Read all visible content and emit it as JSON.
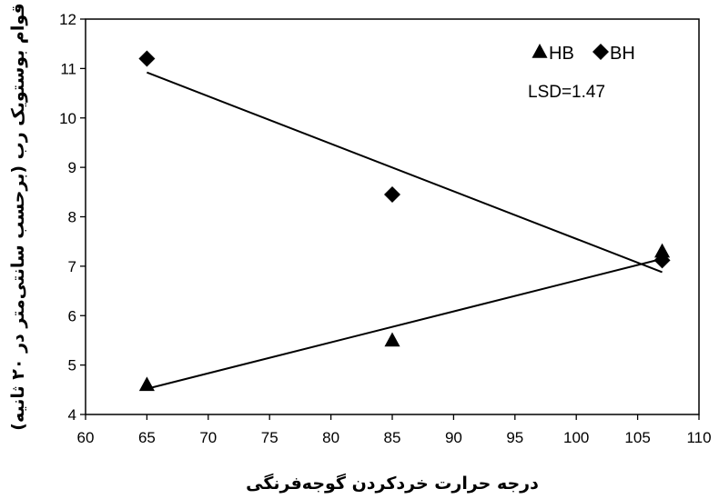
{
  "chart_data": {
    "type": "scatter",
    "title": "",
    "xlabel": "درجه حرارت خردکردن گوجه‌فرنگی",
    "ylabel": "قوام بوستویک رب (برحسب سانتی‌متر در ۲۰ ثانیه)",
    "xlim": [
      60,
      110
    ],
    "ylim": [
      4,
      12
    ],
    "x_ticks": [
      60,
      65,
      70,
      75,
      80,
      85,
      90,
      95,
      100,
      105,
      110
    ],
    "y_ticks": [
      4,
      5,
      6,
      7,
      8,
      9,
      10,
      11,
      12
    ],
    "grid": false,
    "legend_position": "top-right",
    "series": [
      {
        "name": "HB",
        "marker": "triangle",
        "x": [
          65,
          85,
          107
        ],
        "y": [
          4.6,
          5.5,
          7.3
        ],
        "trendline": [
          [
            65,
            4.52
          ],
          [
            107,
            7.15
          ]
        ]
      },
      {
        "name": "BH",
        "marker": "diamond",
        "x": [
          65,
          85,
          107
        ],
        "y": [
          11.2,
          8.45,
          7.12
        ],
        "trendline": [
          [
            65,
            10.92
          ],
          [
            107,
            6.88
          ]
        ]
      }
    ],
    "annotations": [
      "LSD=1.47"
    ],
    "colors": {
      "markers": "#000000",
      "lines": "#000000",
      "background": "#ffffff"
    }
  }
}
